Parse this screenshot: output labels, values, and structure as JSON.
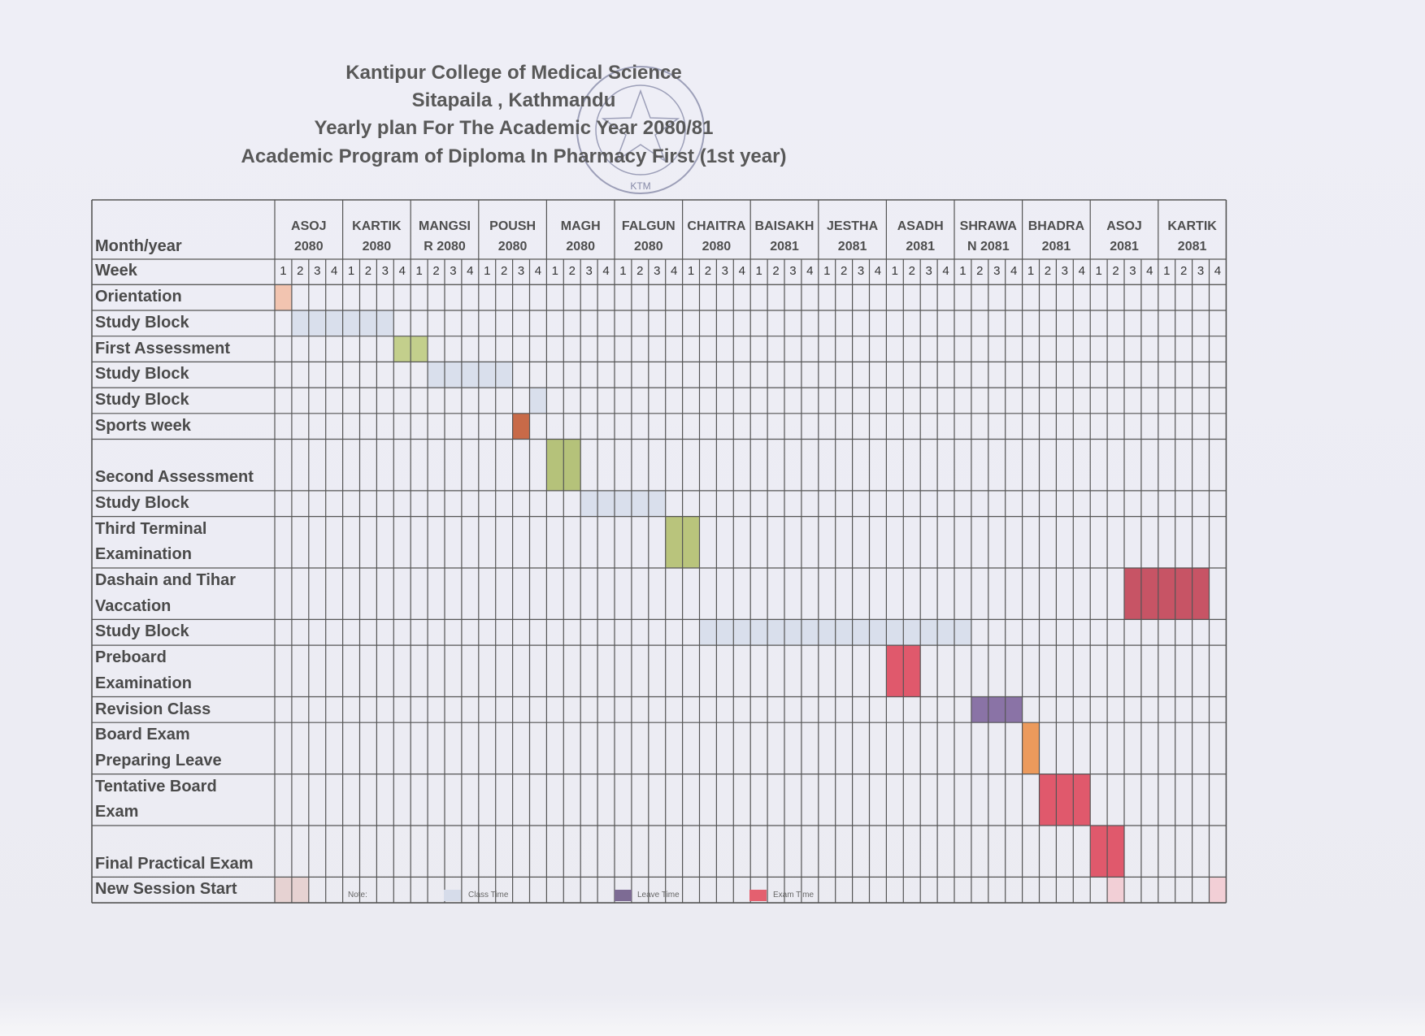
{
  "header": {
    "lines": [
      "Kantipur College of Medical Science",
      "Sitapaila , Kathmandu",
      "Yearly plan For The Academic Year 2080/81",
      "Academic Program of Diploma In Pharmacy First (1st year)"
    ]
  },
  "stamp": {
    "text": "KTM"
  },
  "table": {
    "corner": "Month/year",
    "week_label": "Week",
    "weeks": [
      1,
      2,
      3,
      4
    ],
    "months": [
      {
        "lines": [
          "ASOJ",
          "2080"
        ]
      },
      {
        "lines": [
          "KARTIK",
          "2080"
        ]
      },
      {
        "lines": [
          "MANGSI",
          "R 2080"
        ]
      },
      {
        "lines": [
          "POUSH",
          "2080"
        ]
      },
      {
        "lines": [
          "MAGH",
          "2080"
        ]
      },
      {
        "lines": [
          "FALGUN",
          "2080"
        ]
      },
      {
        "lines": [
          "CHAITRA",
          "2080"
        ]
      },
      {
        "lines": [
          "BAISAKH",
          "2081"
        ]
      },
      {
        "lines": [
          "JESTHA",
          "2081"
        ]
      },
      {
        "lines": [
          "ASADH",
          "2081"
        ]
      },
      {
        "lines": [
          "SHRAWA",
          "N 2081"
        ]
      },
      {
        "lines": [
          "BHADRA",
          "2081"
        ]
      },
      {
        "lines": [
          "ASOJ",
          "2081"
        ]
      },
      {
        "lines": [
          "KARTIK",
          "2081"
        ]
      }
    ],
    "rows": [
      {
        "lines": [
          "Orientation"
        ]
      },
      {
        "lines": [
          "Study Block"
        ]
      },
      {
        "lines": [
          "First Assessment"
        ]
      },
      {
        "lines": [
          "Study Block"
        ]
      },
      {
        "lines": [
          "Study Block"
        ]
      },
      {
        "lines": [
          "Sports week"
        ]
      },
      {
        "lines": [
          "Second Assessment"
        ]
      },
      {
        "lines": [
          "Study Block"
        ]
      },
      {
        "lines": [
          "Third Terminal",
          "Examination"
        ]
      },
      {
        "lines": [
          "Dashain and Tihar",
          "Vaccation"
        ]
      },
      {
        "lines": [
          "Study Block"
        ]
      },
      {
        "lines": [
          "Preboard",
          "Examination"
        ]
      },
      {
        "lines": [
          "Revision Class"
        ]
      },
      {
        "lines": [
          "Board Exam",
          "Preparing Leave"
        ]
      },
      {
        "lines": [
          "Tentative Board",
          "Exam"
        ]
      },
      {
        "lines": [
          "Final Practical Exam"
        ]
      },
      {
        "lines": [
          "New Session Start"
        ]
      }
    ]
  },
  "legend": {
    "note": "Note:",
    "items": [
      "Class Time",
      "Leave Time",
      "Exam Time"
    ]
  }
}
